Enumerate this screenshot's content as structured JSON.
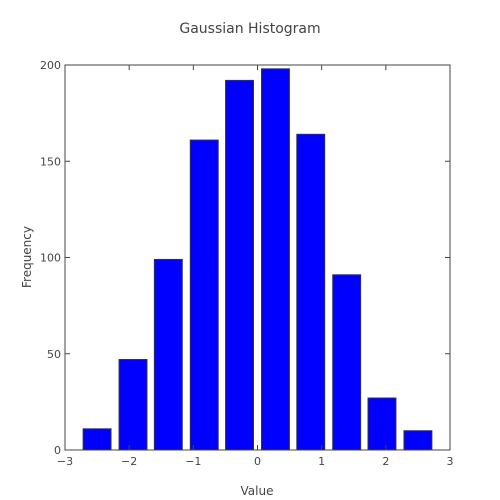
{
  "chart_data": {
    "type": "bar",
    "title": "Gaussian Histogram",
    "xlabel": "Value",
    "ylabel": "Frequency",
    "xlim": [
      -3,
      3
    ],
    "ylim": [
      0,
      200
    ],
    "x_ticks": [
      -3,
      -2,
      -1,
      0,
      1,
      2,
      3
    ],
    "x_tick_labels": [
      "−3",
      "−2",
      "−1",
      "0",
      "1",
      "2",
      "3"
    ],
    "y_ticks": [
      0,
      50,
      100,
      150,
      200
    ],
    "y_tick_labels": [
      "0",
      "50",
      "100",
      "150",
      "200"
    ],
    "bin_width": 0.5575,
    "bin_centers": [
      -2.5,
      -1.94,
      -1.39,
      -0.83,
      -0.28,
      0.28,
      0.83,
      1.39,
      1.94,
      2.5
    ],
    "values": [
      11,
      47,
      99,
      161,
      192,
      198,
      164,
      91,
      27,
      10
    ],
    "bar_color": "#0000ff",
    "bar_edge_color": "#333333",
    "grid": false,
    "legend": "none"
  }
}
